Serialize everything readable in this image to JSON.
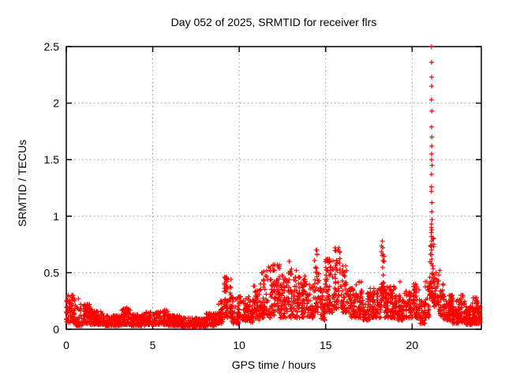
{
  "window": {
    "background": "#ffffff"
  },
  "chart_data": {
    "type": "scatter",
    "title": "Day 052 of 2025, SRMTID for receiver flrs",
    "xlabel": "GPS time / hours",
    "ylabel": "SRMTID / TECUs",
    "xlim": [
      0,
      24
    ],
    "ylim": [
      0,
      2.5
    ],
    "xticks": {
      "values": [
        0,
        5,
        10,
        15,
        20
      ],
      "labels": [
        "0",
        "5",
        "10",
        "15",
        "20"
      ]
    },
    "yticks": {
      "values": [
        0,
        0.5,
        1,
        1.5,
        2,
        2.5
      ],
      "labels": [
        "0",
        "0.5",
        "1",
        "1.5",
        "2",
        "2.5"
      ]
    },
    "grid": true,
    "legend": null,
    "marker": "plus",
    "marker_color": "#ff0000",
    "grid_color": "#9a9a9a",
    "border_color": "#000000",
    "series_name": "SRMTID",
    "envelope_bins": [
      [
        0.0,
        0.5,
        0.06,
        0.3,
        90
      ],
      [
        0.5,
        0.9,
        0.03,
        0.22,
        90
      ],
      [
        0.9,
        1.4,
        0.05,
        0.22,
        90
      ],
      [
        1.4,
        2.2,
        0.04,
        0.16,
        90
      ],
      [
        2.2,
        3.2,
        0.03,
        0.12,
        90
      ],
      [
        3.2,
        3.7,
        0.04,
        0.18,
        90
      ],
      [
        3.7,
        4.6,
        0.03,
        0.13,
        90
      ],
      [
        4.6,
        5.4,
        0.04,
        0.15,
        90
      ],
      [
        5.4,
        5.9,
        0.04,
        0.17,
        90
      ],
      [
        5.9,
        6.6,
        0.03,
        0.12,
        90
      ],
      [
        6.6,
        7.6,
        0.02,
        0.1,
        90
      ],
      [
        7.6,
        8.1,
        0.02,
        0.09,
        90
      ],
      [
        8.1,
        8.7,
        0.03,
        0.14,
        90
      ],
      [
        8.7,
        9.1,
        0.05,
        0.25,
        90
      ],
      [
        9.1,
        9.55,
        0.1,
        0.46,
        100
      ],
      [
        9.55,
        9.95,
        0.05,
        0.28,
        90
      ],
      [
        9.95,
        10.35,
        0.08,
        0.36,
        90
      ],
      [
        10.35,
        10.8,
        0.06,
        0.3,
        90
      ],
      [
        10.8,
        11.25,
        0.08,
        0.4,
        90
      ],
      [
        11.25,
        11.8,
        0.1,
        0.52,
        90
      ],
      [
        11.8,
        12.35,
        0.12,
        0.57,
        100
      ],
      [
        12.35,
        12.75,
        0.1,
        0.48,
        90
      ],
      [
        12.75,
        13.25,
        0.1,
        0.58,
        90
      ],
      [
        13.25,
        13.65,
        0.1,
        0.48,
        90
      ],
      [
        13.65,
        14.1,
        0.1,
        0.44,
        90
      ],
      [
        14.1,
        14.35,
        0.1,
        0.38,
        90
      ],
      [
        14.35,
        14.65,
        0.15,
        0.7,
        90
      ],
      [
        14.65,
        14.95,
        0.08,
        0.36,
        90
      ],
      [
        14.95,
        15.45,
        0.15,
        0.62,
        110
      ],
      [
        15.45,
        15.95,
        0.18,
        0.72,
        100
      ],
      [
        15.95,
        16.35,
        0.15,
        0.56,
        100
      ],
      [
        16.35,
        16.75,
        0.1,
        0.36,
        90
      ],
      [
        16.75,
        17.1,
        0.1,
        0.42,
        90
      ],
      [
        17.1,
        17.55,
        0.08,
        0.32,
        90
      ],
      [
        17.55,
        18.2,
        0.1,
        0.36,
        90
      ],
      [
        18.2,
        18.4,
        0.2,
        0.78,
        120
      ],
      [
        18.4,
        19.1,
        0.1,
        0.38,
        100
      ],
      [
        19.1,
        19.55,
        0.08,
        0.3,
        90
      ],
      [
        19.55,
        19.95,
        0.1,
        0.36,
        90
      ],
      [
        19.95,
        20.45,
        0.1,
        0.4,
        90
      ],
      [
        20.45,
        20.75,
        0.05,
        0.26,
        90
      ],
      [
        20.75,
        21.0,
        0.1,
        0.42,
        90
      ],
      [
        21.0,
        21.25,
        0.25,
        0.9,
        140
      ],
      [
        21.25,
        21.55,
        0.2,
        0.5,
        110
      ],
      [
        21.55,
        21.8,
        0.12,
        0.4,
        90
      ],
      [
        21.8,
        22.35,
        0.08,
        0.3,
        110
      ],
      [
        22.35,
        22.75,
        0.05,
        0.26,
        110
      ],
      [
        22.75,
        23.05,
        0.06,
        0.3,
        90
      ],
      [
        23.05,
        23.45,
        0.04,
        0.2,
        100
      ],
      [
        23.45,
        23.95,
        0.05,
        0.28,
        110
      ]
    ],
    "spike_column": {
      "t": 21.13,
      "values": [
        2.5,
        2.36,
        2.23,
        2.15,
        2.03,
        1.93,
        1.79,
        1.7,
        1.62,
        1.55,
        1.5,
        1.45,
        1.37,
        1.26,
        1.22,
        1.12,
        1.04,
        0.97,
        0.93,
        0.88,
        0.82,
        0.78,
        0.74,
        0.7,
        0.66,
        0.62,
        0.58
      ]
    },
    "peak_points": [
      [
        0.32,
        0.3
      ],
      [
        0.38,
        0.28
      ],
      [
        0.7,
        0.27
      ],
      [
        3.5,
        0.19
      ],
      [
        9.3,
        0.45
      ],
      [
        11.3,
        0.5
      ],
      [
        11.7,
        0.55
      ],
      [
        12.2,
        0.57
      ],
      [
        12.9,
        0.6
      ],
      [
        13.3,
        0.52
      ],
      [
        13.8,
        0.47
      ],
      [
        14.45,
        0.7
      ],
      [
        14.5,
        0.66
      ],
      [
        15.2,
        0.62
      ],
      [
        15.75,
        0.72
      ],
      [
        15.8,
        0.68
      ],
      [
        16.15,
        0.56
      ],
      [
        18.28,
        0.78
      ],
      [
        18.3,
        0.72
      ],
      [
        19.3,
        0.42
      ],
      [
        20.2,
        0.4
      ],
      [
        20.85,
        0.42
      ],
      [
        21.6,
        0.52
      ],
      [
        22.9,
        0.3
      ]
    ]
  }
}
